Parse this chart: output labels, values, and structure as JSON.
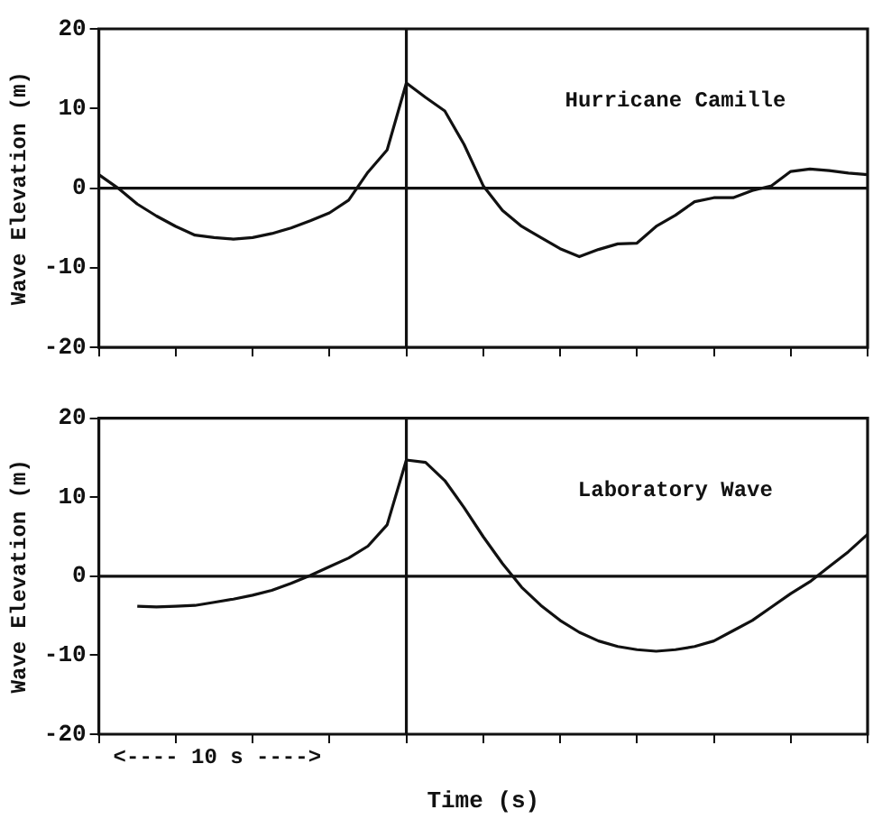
{
  "chart_data": [
    {
      "type": "line",
      "title": "Hurricane Camille",
      "ylabel": "Wave Elevation (m)",
      "categories": [
        null,
        null,
        null,
        null,
        null,
        null,
        null,
        null,
        null,
        null,
        null,
        null,
        null,
        null,
        null,
        null,
        null,
        null,
        null,
        null,
        null,
        null,
        null,
        null,
        null,
        null,
        null,
        null,
        null,
        null,
        null,
        null,
        null,
        null,
        null,
        null,
        null,
        null,
        null,
        null,
        null
      ],
      "series": [
        {
          "color": "#111111",
          "values": [
            1.7,
            0,
            -2,
            -3.5,
            -4.8,
            -5.9,
            -6.2,
            -6.4,
            -6.2,
            -5.7,
            -5,
            -4.1,
            -3.1,
            -1.5,
            2,
            4.8,
            13.2,
            11.4,
            9.7,
            5.5,
            0.3,
            -2.8,
            -4.8,
            -6.2,
            -7.6,
            -8.6,
            -7.7,
            -7,
            -6.9,
            -4.8,
            -3.4,
            -1.7,
            -1.2,
            -1.2,
            -0.3,
            0.3,
            2.1,
            2.4,
            2.2,
            1.9,
            1.7
          ]
        }
      ],
      "ylim": [
        -20,
        20
      ],
      "yticks": [
        -20,
        -10,
        0,
        10,
        20
      ],
      "tick_labels": "y",
      "grid": false,
      "legend": false,
      "marker": "none",
      "line_style": "solid",
      "ref_lines": [
        {
          "axis": "y",
          "value": 0,
          "color": "#111111"
        }
      ]
    },
    {
      "type": "line",
      "title": "Laboratory Wave",
      "ylabel": "Wave Elevation (m)",
      "xlabel": "Time (s)",
      "annotations": [
        "<---- 10 s ---->"
      ],
      "categories": [
        null,
        null,
        null,
        null,
        null,
        null,
        null,
        null,
        null,
        null,
        null,
        null,
        null,
        null,
        null,
        null,
        null,
        null,
        null,
        null,
        null,
        null,
        null,
        null,
        null,
        null,
        null,
        null,
        null,
        null,
        null,
        null,
        null,
        null,
        null,
        null,
        null,
        null,
        null,
        null,
        null
      ],
      "series": [
        {
          "color": "#111111",
          "values": [
            null,
            null,
            -3.8,
            -3.9,
            -3.8,
            -3.7,
            -3.3,
            -2.9,
            -2.4,
            -1.8,
            -0.9,
            0.1,
            1.2,
            2.3,
            3.8,
            6.5,
            14.7,
            14.4,
            12.1,
            8.7,
            5,
            1.6,
            -1.4,
            -3.7,
            -5.6,
            -7.1,
            -8.2,
            -8.9,
            -9.3,
            -9.5,
            -9.3,
            -8.9,
            -8.2,
            -6.9,
            -5.6,
            -3.9,
            -2.2,
            -0.7,
            1.2,
            3.1,
            5.3
          ]
        }
      ],
      "ylim": [
        -20,
        20
      ],
      "yticks": [
        -20,
        -10,
        0,
        10,
        20
      ],
      "tick_labels": "y",
      "grid": false,
      "legend": false,
      "marker": "none",
      "line_style": "solid",
      "ref_lines": [
        {
          "axis": "y",
          "value": 0,
          "color": "#111111"
        }
      ]
    }
  ]
}
